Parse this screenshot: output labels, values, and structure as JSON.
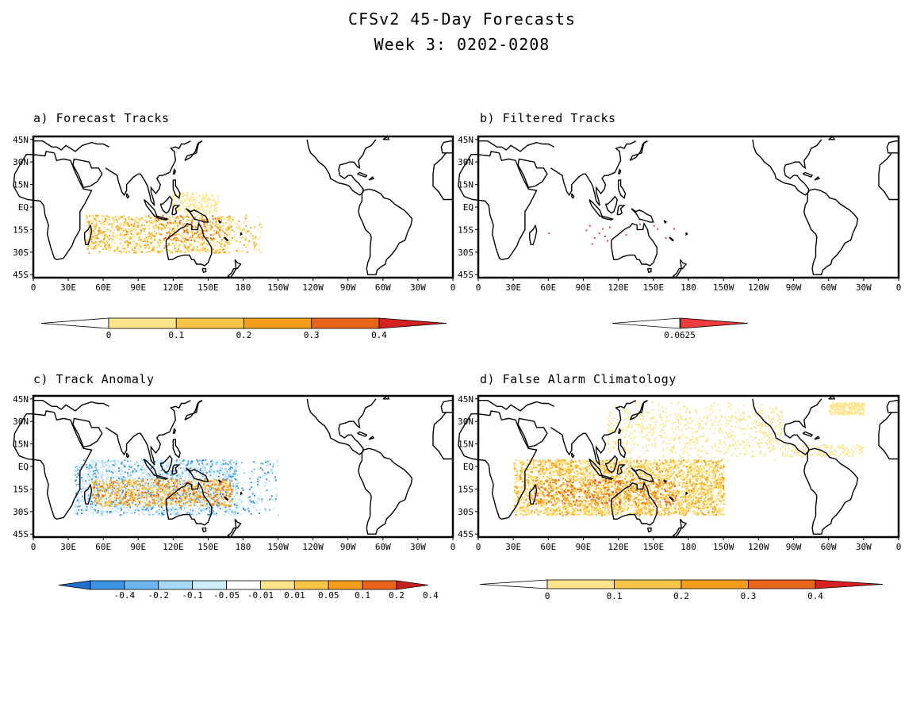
{
  "title_line1": "CFSv2 45-Day Forecasts",
  "title_line2": "Week 3: 0202-0208",
  "lat_labels": [
    "45N",
    "30N",
    "15N",
    "EQ",
    "15S",
    "30S",
    "45S"
  ],
  "lon_labels": [
    "0",
    "30E",
    "60E",
    "90E",
    "120E",
    "150E",
    "180",
    "150W",
    "120W",
    "90W",
    "60W",
    "30W",
    "0"
  ],
  "panels": [
    {
      "id": "a",
      "title": "a) Forecast Tracks",
      "colorbar": {
        "labels": [
          "0",
          "0.1",
          "0.2",
          "0.3",
          "0.4"
        ],
        "colors": [
          "#ffffff",
          "#fde58c",
          "#f9c548",
          "#f39d1d",
          "#e8641b",
          "#d62121"
        ]
      }
    },
    {
      "id": "b",
      "title": "b) Filtered Tracks",
      "colorbar": {
        "labels": [
          "0.0625"
        ],
        "colors": [
          "#ffffff",
          "#ee3b3b"
        ]
      }
    },
    {
      "id": "c",
      "title": "c) Track Anomaly",
      "colorbar": {
        "labels": [
          "-0.4",
          "-0.2",
          "-0.1",
          "-0.05",
          "-0.01",
          "0.01",
          "0.05",
          "0.1",
          "0.2",
          "0.4"
        ],
        "colors": [
          "#1f6fd1",
          "#3d94e3",
          "#6fb6ef",
          "#a7d8f5",
          "#cdeefa",
          "#ffffff",
          "#fde58c",
          "#f9c548",
          "#f39d1d",
          "#e8641b",
          "#c81f1f"
        ]
      }
    },
    {
      "id": "d",
      "title": "d) False Alarm Climatology",
      "colorbar": {
        "labels": [
          "0",
          "0.1",
          "0.2",
          "0.3",
          "0.4"
        ],
        "colors": [
          "#ffffff",
          "#fde58c",
          "#f9c548",
          "#f39d1d",
          "#e8641b",
          "#d62121"
        ]
      }
    }
  ]
}
